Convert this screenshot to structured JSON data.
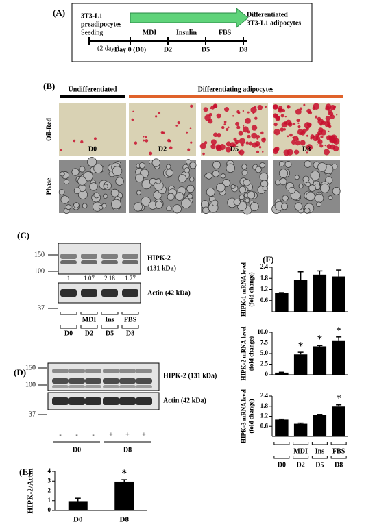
{
  "panel_a": {
    "label": "(A)",
    "start": [
      "3T3-L1",
      "preadipocytes"
    ],
    "end": [
      "Differentiated",
      "3T3-L1 adipocytes"
    ],
    "seeding": "Seeding",
    "gap": "(2 days)",
    "timepoints": [
      "Day 0 (D0)",
      "D2",
      "D5",
      "D8"
    ],
    "treatments": [
      "MDI",
      "Insulin",
      "FBS"
    ]
  },
  "panel_b": {
    "label": "(B)",
    "groups": [
      "Undifferentiated",
      "Differentiating adipocytes"
    ],
    "rows": [
      "Oil-Red",
      "Phase"
    ],
    "days": [
      "D0",
      "D2",
      "D5",
      "D8"
    ]
  },
  "panel_c": {
    "label": "(C)",
    "markers_top": [
      "150",
      "100"
    ],
    "marker_bottom": "37",
    "target": [
      "HIPK-2",
      "(131 kDa)"
    ],
    "ratios": [
      "1",
      "1.07",
      "2.18",
      "1.77"
    ],
    "control": "Actin (42 kDa)",
    "treatments": [
      "MDI",
      "Ins",
      "FBS"
    ],
    "days": [
      "D0",
      "D2",
      "D5",
      "D8"
    ]
  },
  "panel_d": {
    "label": "(D)",
    "markers_top": [
      "150",
      "100"
    ],
    "marker_bottom": "37",
    "target": "HIPK-2 (131 kDa)",
    "control": "Actin (42 kDa)",
    "lanes": [
      "-",
      "-",
      "-",
      "+",
      "+",
      "+"
    ],
    "groups": [
      "D0",
      "D8"
    ]
  },
  "panel_e_label": "(E)",
  "panel_f_label": "(F)",
  "chart_data": [
    {
      "type": "bar",
      "ylabel": [
        "HIPK-2/Actin"
      ],
      "categories": [
        "D0",
        "D8"
      ],
      "values": [
        0.95,
        2.95
      ],
      "errors": [
        0.3,
        0.2
      ],
      "value_annotations": [
        null,
        "*"
      ],
      "ylim": [
        0,
        4
      ],
      "yticks": [
        0,
        1,
        2,
        3,
        4
      ],
      "color": "#000000"
    },
    {
      "type": "bar",
      "ylabel": [
        "HIPK-1 mRNA level",
        "(fold change)"
      ],
      "values": [
        1.0,
        1.7,
        2.0,
        1.9
      ],
      "errors": [
        0.03,
        0.45,
        0.2,
        0.35
      ],
      "value_annotations": [
        null,
        null,
        null,
        null
      ],
      "ylim": [
        0,
        2.4
      ],
      "yticks": [
        0.6,
        1.2,
        1.8,
        2.4
      ],
      "color": "#000000"
    },
    {
      "type": "bar",
      "ylabel": [
        "HIPK-2 mRNA level",
        "(fold change)"
      ],
      "values": [
        0.5,
        4.8,
        6.7,
        8.1
      ],
      "errors": [
        0.1,
        0.5,
        0.2,
        0.8
      ],
      "value_annotations": [
        null,
        "*",
        "*",
        "*"
      ],
      "ylim": [
        0,
        10
      ],
      "yticks": [
        0,
        {
          "value": 2.5,
          "label": "2.5"
        },
        {
          "value": 5,
          "label": "5.0"
        },
        {
          "value": 7.5,
          "label": "7.5"
        },
        {
          "value": 10,
          "label": "10.0"
        }
      ],
      "color": "#000000"
    },
    {
      "type": "bar",
      "ylabel": [
        "HIPK-3 mRNA level",
        "(fold change)"
      ],
      "categories": [
        "D0",
        "D2",
        "D5",
        "D8"
      ],
      "group_labels": [
        null,
        "MDI",
        "Ins",
        "FBS"
      ],
      "values": [
        1.0,
        0.75,
        1.27,
        1.78
      ],
      "errors": [
        0.03,
        0.04,
        0.04,
        0.1
      ],
      "value_annotations": [
        null,
        null,
        null,
        "*"
      ],
      "ylim": [
        0,
        2.4
      ],
      "yticks": [
        0.6,
        1.2,
        1.8,
        2.4
      ],
      "color": "#000000"
    }
  ]
}
